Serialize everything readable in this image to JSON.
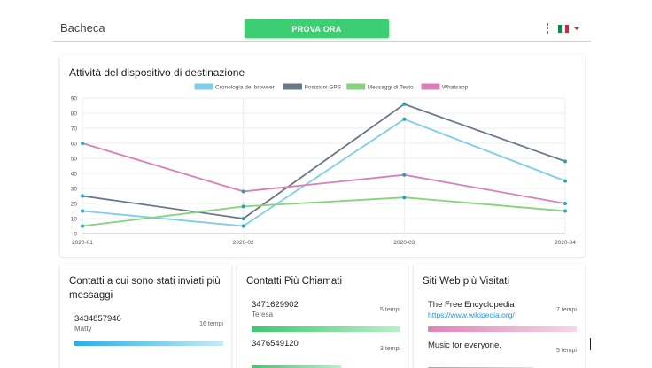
{
  "header": {
    "title": "Bacheca",
    "cta_label": "PROVA ORA",
    "menu_icon": "kebab-icon",
    "flag_icon": "italy-flag-icon",
    "flag_colors": [
      "#009246",
      "#ffffff",
      "#ce2b37"
    ]
  },
  "chart_card": {
    "title": "Attività del dispositivo di destinazione"
  },
  "chart_data": {
    "type": "line",
    "title": "Attività del dispositivo di destinazione",
    "x": [
      "2020-01",
      "2020-02",
      "2020-03",
      "2020-04"
    ],
    "ylim": [
      0,
      90
    ],
    "yticks": [
      0,
      10,
      20,
      30,
      40,
      50,
      60,
      70,
      80,
      90
    ],
    "grid": true,
    "legend": "top-center",
    "series": [
      {
        "name": "Cronologia del browser",
        "color": "#7fcdea",
        "values": [
          15,
          5,
          76,
          35
        ]
      },
      {
        "name": "Posizioni GPS",
        "color": "#6b7889",
        "values": [
          25,
          10,
          86,
          48
        ]
      },
      {
        "name": "Messaggi di Testo",
        "color": "#86d37b",
        "values": [
          5,
          18,
          24,
          15
        ]
      },
      {
        "name": "Whatsapp",
        "color": "#d97fb5",
        "values": [
          60,
          28,
          39,
          20
        ]
      }
    ],
    "point_color": "#1aa5b8"
  },
  "panels": {
    "messaged": {
      "title": "Contatti a cui sono stati inviati più messaggi",
      "items": [
        {
          "primary": "3434857946",
          "secondary": "Matty",
          "count": "16 tempi",
          "share": 1.0
        }
      ]
    },
    "called": {
      "title": "Contatti Più Chiamati",
      "items": [
        {
          "primary": "3471629902",
          "secondary": "Teresa",
          "count": "5 tempi",
          "share": 1.0
        },
        {
          "primary": "3476549120",
          "secondary": "",
          "count": "3 tempi",
          "share": 0.6
        }
      ]
    },
    "sites": {
      "title": "Siti Web più Visitati",
      "items": [
        {
          "primary": "The Free Encyclopedia",
          "link": "https://www.wikipedia.org/",
          "count": "7 tempi",
          "share": 1.0
        },
        {
          "primary": "Music for everyone.",
          "link": "",
          "count": "5 tempi",
          "share": 0.71
        }
      ]
    }
  }
}
